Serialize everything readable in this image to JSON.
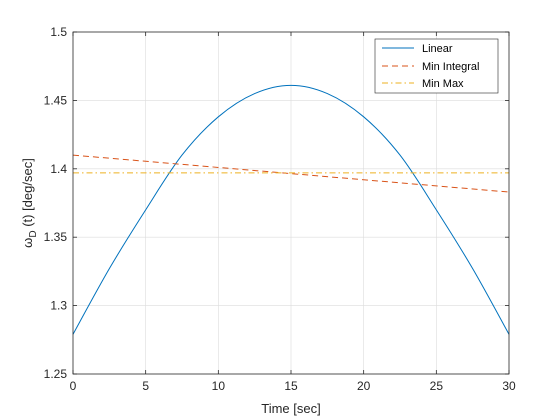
{
  "chart_data": {
    "type": "line",
    "title": "",
    "xlabel": "Time [sec]",
    "ylabel_main": "ω",
    "ylabel_sub": "D",
    "ylabel_rest": " (t) [deg/sec]",
    "xlim": [
      0,
      30
    ],
    "ylim": [
      1.25,
      1.5
    ],
    "xticks": [
      0,
      5,
      10,
      15,
      20,
      25,
      30
    ],
    "yticks": [
      1.25,
      1.3,
      1.35,
      1.4,
      1.45,
      1.5
    ],
    "grid": true,
    "legend_position": "top-right",
    "series": [
      {
        "name": "Linear",
        "color": "#0072BD",
        "style": "solid",
        "x": [
          0,
          2.5,
          5,
          7.5,
          10,
          12.5,
          15,
          17.5,
          20,
          22.5,
          25,
          27.5,
          30
        ],
        "y": [
          1.279,
          1.327,
          1.37,
          1.41,
          1.438,
          1.455,
          1.461,
          1.455,
          1.438,
          1.41,
          1.37,
          1.327,
          1.279
        ]
      },
      {
        "name": "Min Integral",
        "color": "#D95319",
        "style": "dashed",
        "x": [
          0,
          30
        ],
        "y": [
          1.41,
          1.383
        ]
      },
      {
        "name": "Min Max",
        "color": "#EDB120",
        "style": "dashdot",
        "x": [
          0,
          30
        ],
        "y": [
          1.397,
          1.397
        ]
      }
    ]
  }
}
